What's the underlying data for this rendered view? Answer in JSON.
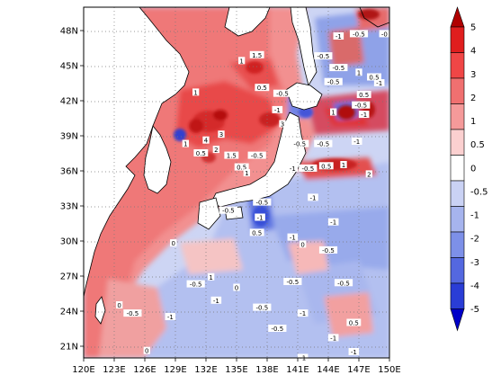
{
  "map": {
    "lat_labels": [
      "48N",
      "45N",
      "42N",
      "39N",
      "36N",
      "33N",
      "30N",
      "27N",
      "24N",
      "21N"
    ],
    "lon_labels": [
      "120E",
      "123E",
      "126E",
      "129E",
      "132E",
      "135E",
      "138E",
      "141E",
      "144E",
      "147E",
      "150E"
    ],
    "region": {
      "lon_min": 120,
      "lon_max": 150,
      "lat_min": 20,
      "lat_max": 50
    }
  },
  "colorbar": {
    "labels": [
      "5",
      "4",
      "3",
      "2",
      "1",
      "0.5",
      "0",
      "-0.5",
      "-1",
      "-2",
      "-3",
      "-4",
      "-5"
    ],
    "colors": [
      "#b00000",
      "#e01e1e",
      "#f04646",
      "#f07070",
      "#f59a9a",
      "#fbd0d0",
      "#ffffff",
      "#cad2f4",
      "#a6b4ee",
      "#7d90e8",
      "#5468e0",
      "#2a3dd6",
      "#0000c8"
    ]
  },
  "contour_labels": [
    {
      "text": "-1",
      "lon": 145.0,
      "lat": 47.5
    },
    {
      "text": "-0.5",
      "lon": 147.0,
      "lat": 47.7
    },
    {
      "text": "-0",
      "lon": 149.5,
      "lat": 47.7
    },
    {
      "text": "-0.5",
      "lon": 143.5,
      "lat": 45.8
    },
    {
      "text": "1",
      "lon": 135.5,
      "lat": 45.4
    },
    {
      "text": "1.5",
      "lon": 137.0,
      "lat": 45.9
    },
    {
      "text": "-0.5",
      "lon": 145.0,
      "lat": 44.8
    },
    {
      "text": "1",
      "lon": 147.0,
      "lat": 44.4
    },
    {
      "text": "-1",
      "lon": 149.0,
      "lat": 43.5
    },
    {
      "text": "-0.5",
      "lon": 144.5,
      "lat": 43.6
    },
    {
      "text": "0.5",
      "lon": 148.5,
      "lat": 44.0
    },
    {
      "text": "-0.5",
      "lon": 139.5,
      "lat": 42.6
    },
    {
      "text": "1",
      "lon": 131.0,
      "lat": 42.7
    },
    {
      "text": "0.5",
      "lon": 137.5,
      "lat": 43.1
    },
    {
      "text": "0.5",
      "lon": 147.5,
      "lat": 42.5
    },
    {
      "text": "-1",
      "lon": 139.0,
      "lat": 41.2
    },
    {
      "text": "1",
      "lon": 144.5,
      "lat": 41.0
    },
    {
      "text": "-0.5",
      "lon": 147.2,
      "lat": 41.6
    },
    {
      "text": "-1",
      "lon": 147.5,
      "lat": 40.8
    },
    {
      "text": "3",
      "lon": 139.5,
      "lat": 40.0
    },
    {
      "text": "4",
      "lon": 132.0,
      "lat": 38.6
    },
    {
      "text": "3",
      "lon": 133.5,
      "lat": 39.1
    },
    {
      "text": "2",
      "lon": 133.0,
      "lat": 37.8
    },
    {
      "text": "1",
      "lon": 130.0,
      "lat": 38.3
    },
    {
      "text": "0.5",
      "lon": 131.5,
      "lat": 37.5
    },
    {
      "text": "1.5",
      "lon": 134.5,
      "lat": 37.3
    },
    {
      "text": "0.5",
      "lon": 135.5,
      "lat": 36.3
    },
    {
      "text": "-0.5",
      "lon": 137.0,
      "lat": 37.3
    },
    {
      "text": "1",
      "lon": 136.0,
      "lat": 35.8
    },
    {
      "text": "-0.5",
      "lon": 141.2,
      "lat": 38.3
    },
    {
      "text": "-0.5",
      "lon": 143.5,
      "lat": 38.3
    },
    {
      "text": "-1",
      "lon": 146.8,
      "lat": 38.5
    },
    {
      "text": "0.5",
      "lon": 143.8,
      "lat": 36.4
    },
    {
      "text": "1",
      "lon": 145.5,
      "lat": 36.5
    },
    {
      "text": "2",
      "lon": 148.0,
      "lat": 35.7
    },
    {
      "text": "-0.5",
      "lon": 142.0,
      "lat": 36.2
    },
    {
      "text": "-1",
      "lon": 140.5,
      "lat": 36.2
    },
    {
      "text": "-1",
      "lon": 142.5,
      "lat": 33.7
    },
    {
      "text": "-0.5",
      "lon": 137.5,
      "lat": 33.3
    },
    {
      "text": "-1",
      "lon": 137.3,
      "lat": 32.0
    },
    {
      "text": "-0.5",
      "lon": 134.2,
      "lat": 32.6
    },
    {
      "text": "-1",
      "lon": 144.5,
      "lat": 31.6
    },
    {
      "text": "-1",
      "lon": 140.5,
      "lat": 30.3
    },
    {
      "text": "0.5",
      "lon": 137.0,
      "lat": 30.7
    },
    {
      "text": "0",
      "lon": 141.5,
      "lat": 29.7
    },
    {
      "text": "-0.5",
      "lon": 144.0,
      "lat": 29.2
    },
    {
      "text": "0",
      "lon": 128.8,
      "lat": 29.8
    },
    {
      "text": "-0.5",
      "lon": 131.0,
      "lat": 26.3
    },
    {
      "text": "1",
      "lon": 132.5,
      "lat": 26.9
    },
    {
      "text": "0",
      "lon": 135.0,
      "lat": 26.0
    },
    {
      "text": "-0.5",
      "lon": 140.5,
      "lat": 26.5
    },
    {
      "text": "-0.5",
      "lon": 145.5,
      "lat": 26.4
    },
    {
      "text": "-1",
      "lon": 133.0,
      "lat": 24.9
    },
    {
      "text": "-0.5",
      "lon": 137.5,
      "lat": 24.3
    },
    {
      "text": "0",
      "lon": 123.5,
      "lat": 24.5
    },
    {
      "text": "-0.5",
      "lon": 124.8,
      "lat": 23.8
    },
    {
      "text": "-1",
      "lon": 128.5,
      "lat": 23.5
    },
    {
      "text": "-1",
      "lon": 141.5,
      "lat": 23.8
    },
    {
      "text": "0.5",
      "lon": 146.5,
      "lat": 23.0
    },
    {
      "text": "-0.5",
      "lon": 139.0,
      "lat": 22.5
    },
    {
      "text": "-1",
      "lon": 144.5,
      "lat": 21.7
    },
    {
      "text": "-1",
      "lon": 146.5,
      "lat": 20.5
    },
    {
      "text": "0",
      "lon": 126.2,
      "lat": 20.6
    },
    {
      "text": "-1",
      "lon": 141.5,
      "lat": 20.0
    }
  ]
}
